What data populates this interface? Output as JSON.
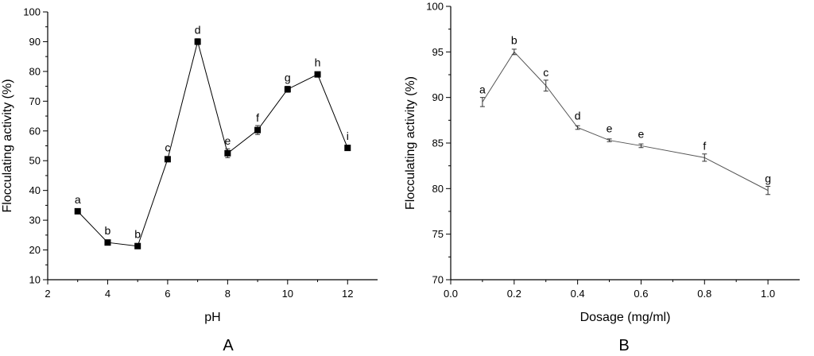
{
  "chart_data": [
    {
      "type": "line",
      "panel_label": "A",
      "xlabel": "pH",
      "ylabel": "Flocculating activity (%)",
      "xlim": [
        2,
        13
      ],
      "ylim": [
        10,
        100
      ],
      "x_ticks": [
        2,
        4,
        6,
        8,
        10,
        12
      ],
      "y_ticks": [
        10,
        20,
        30,
        40,
        50,
        60,
        70,
        80,
        90,
        100
      ],
      "marker": "square",
      "series": [
        {
          "x": [
            3,
            4,
            5,
            6,
            7,
            8,
            9,
            10,
            11,
            12
          ],
          "values": [
            33,
            22.5,
            21.3,
            50.5,
            90,
            52.5,
            60.3,
            74,
            79,
            54.3
          ],
          "errors": [
            0.8,
            0.8,
            0.8,
            0.8,
            1.0,
            1.5,
            1.5,
            1.0,
            0.8,
            0.8
          ],
          "labels": [
            "a",
            "b",
            "b",
            "c",
            "d",
            "e",
            "f",
            "g",
            "h",
            "i"
          ]
        }
      ]
    },
    {
      "type": "line",
      "panel_label": "B",
      "xlabel": "Dosage (mg/ml)",
      "ylabel": "Flocculating activity (%)",
      "xlim": [
        0.0,
        1.1
      ],
      "ylim": [
        70,
        100
      ],
      "x_ticks": [
        0.0,
        0.2,
        0.4,
        0.6,
        0.8,
        1.0
      ],
      "y_ticks": [
        70,
        75,
        80,
        85,
        90,
        95,
        100
      ],
      "marker": "none",
      "series": [
        {
          "x": [
            0.1,
            0.2,
            0.3,
            0.4,
            0.5,
            0.6,
            0.8,
            1.0
          ],
          "values": [
            89.5,
            95.0,
            91.3,
            86.7,
            85.3,
            84.7,
            83.4,
            79.8
          ],
          "errors": [
            0.5,
            0.3,
            0.6,
            0.2,
            0.15,
            0.2,
            0.4,
            0.45
          ],
          "labels": [
            "a",
            "b",
            "c",
            "d",
            "e",
            "e",
            "f",
            "g"
          ]
        }
      ]
    }
  ]
}
